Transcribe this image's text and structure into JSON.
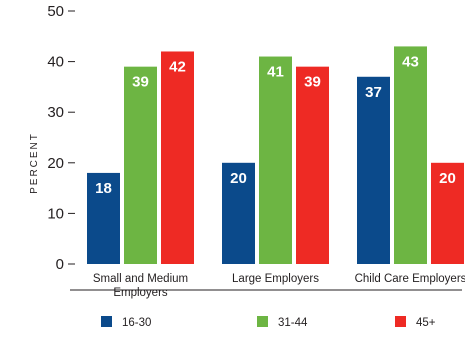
{
  "chart_data": {
    "type": "bar",
    "title": "",
    "xlabel": "",
    "ylabel": "PERCENT",
    "ylim": [
      0,
      50
    ],
    "yticks": [
      0,
      10,
      20,
      30,
      40,
      50
    ],
    "categories": [
      [
        "Small and Medium",
        "Employers"
      ],
      [
        "Large Employers"
      ],
      [
        "Child Care Employers"
      ]
    ],
    "series": [
      {
        "name": "16-30",
        "color": "#0b4a8b",
        "values": [
          18,
          20,
          37
        ]
      },
      {
        "name": "31-44",
        "color": "#6db543",
        "values": [
          39,
          41,
          43
        ]
      },
      {
        "name": "45+",
        "color": "#ee2a24",
        "values": [
          42,
          39,
          20
        ]
      }
    ],
    "grid": false,
    "legend": "bottom"
  }
}
